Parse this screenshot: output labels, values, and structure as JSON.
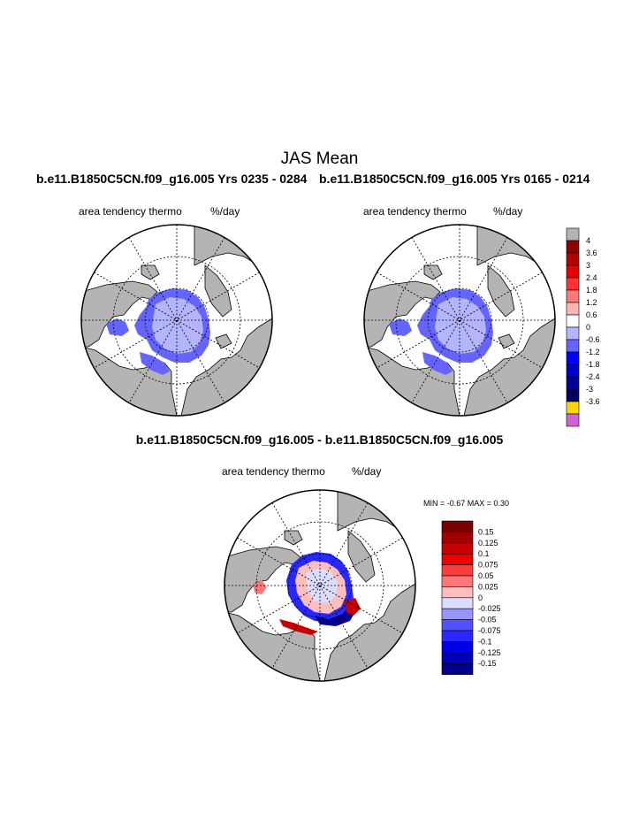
{
  "figure": {
    "title": "JAS Mean",
    "panel_left": {
      "case": "b.e11.B1850C5CN.f09_g16.005  Yrs 0235 - 0284",
      "field": "area tendency thermo",
      "units": "%/day"
    },
    "panel_right": {
      "case": "b.e11.B1850C5CN.f09_g16.005  Yrs 0165 - 0214",
      "field": "area tendency thermo",
      "units": "%/day"
    },
    "panel_diff": {
      "case": "b.e11.B1850C5CN.f09_g16.005 - b.e11.B1850C5CN.f09_g16.005",
      "field": "area tendency thermo",
      "units": "%/day",
      "min_max": "MIN =  -0.67 MAX =   0.30"
    }
  },
  "colorbar_top": {
    "labels": [
      "4",
      "3.6",
      "3",
      "2.4",
      "1.8",
      "1.2",
      "0.6",
      "0",
      "-0.6",
      "-1.2",
      "-1.8",
      "-2.4",
      "-3",
      "-3.6"
    ],
    "colors": [
      "#b4b4b4",
      "#8c0000",
      "#b40000",
      "#e60000",
      "#ff3232",
      "#ff7878",
      "#ffb4b4",
      "#ffffff",
      "#b4b4ff",
      "#6464ff",
      "#0000ff",
      "#0000c8",
      "#000096",
      "#000064",
      "#ffd700",
      "#d264d2"
    ]
  },
  "colorbar_diff": {
    "labels": [
      "0.15",
      "0.125",
      "0.1",
      "0.075",
      "0.05",
      "0.025",
      "0",
      "-0.025",
      "-0.05",
      "-0.075",
      "-0.1",
      "-0.125",
      "-0.15"
    ],
    "colors": [
      "#780000",
      "#a00000",
      "#c80000",
      "#f00000",
      "#ff3c3c",
      "#ff7878",
      "#ffbebe",
      "#dcdcff",
      "#9696ff",
      "#5050ff",
      "#2828ff",
      "#0000e6",
      "#0000b4",
      "#00008c"
    ]
  },
  "map_colors": {
    "land": "#b4b4b4",
    "ocean": "#ffffff",
    "ice_interior": "#b4b4ff",
    "ice_edge": "#6464ff"
  }
}
